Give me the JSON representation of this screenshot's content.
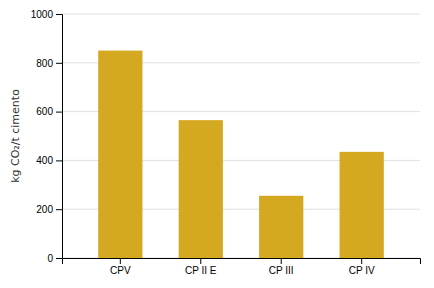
{
  "chart_data": {
    "type": "bar",
    "categories": [
      "CPV",
      "CP II E",
      "CP III",
      "CP IV"
    ],
    "values": [
      850,
      565,
      255,
      435
    ],
    "color": "#D4A820",
    "ylabel": "kg CO₂/t cimento",
    "ylim": [
      0,
      1000
    ],
    "yticks": [
      0,
      200,
      400,
      600,
      800,
      1000
    ],
    "grid": true
  }
}
